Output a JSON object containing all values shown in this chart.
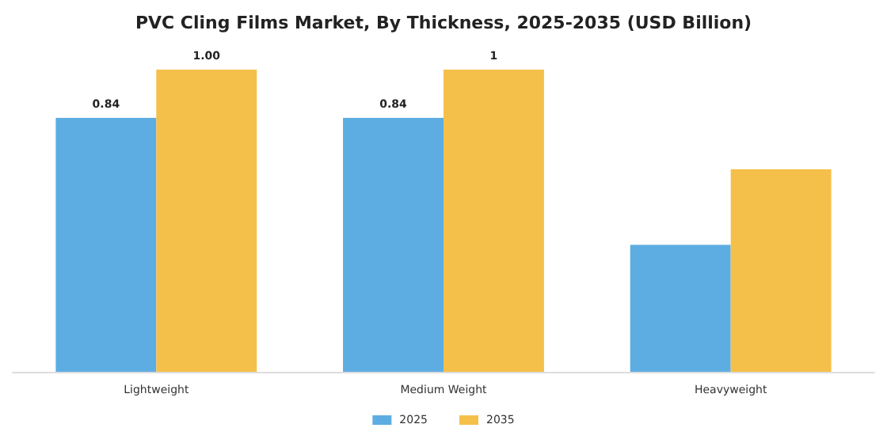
{
  "chart_data": {
    "type": "bar",
    "title": "PVC Cling Films Market, By Thickness, 2025-2035 (USD Billion)",
    "categories": [
      "Lightweight",
      "Medium Weight",
      "Heavyweight"
    ],
    "series": [
      {
        "name": "2025",
        "color": "#5dade2",
        "values": [
          0.84,
          0.84,
          0.42
        ],
        "value_labels": [
          "0.84",
          "0.84",
          null
        ]
      },
      {
        "name": "2035",
        "color": "#f5c04a",
        "values": [
          1.0,
          1,
          0.67
        ],
        "value_labels": [
          "1.00",
          "1",
          null
        ]
      }
    ],
    "legend": "bottom"
  }
}
